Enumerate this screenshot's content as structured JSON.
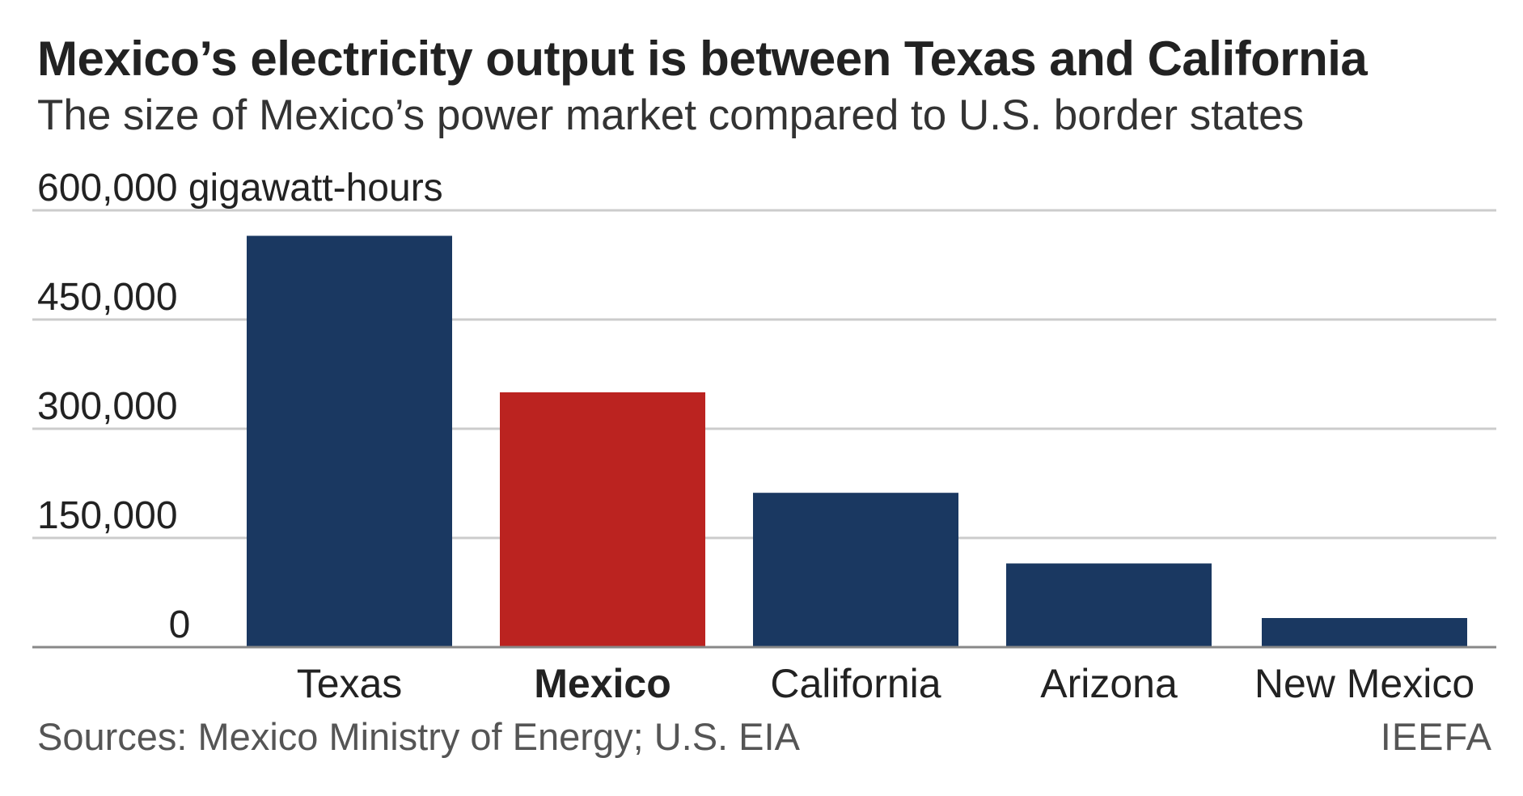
{
  "title": "Mexico’s electricity output is between Texas and California",
  "subtitle": "The size of Mexico’s power market compared to U.S. border states",
  "chart_data": {
    "type": "bar",
    "title": "Mexico’s electricity output is between Texas and California",
    "subtitle": "The size of Mexico’s power market compared to U.S. border states",
    "ylabel": "",
    "y_unit": "gigawatt-hours",
    "ylim": [
      0,
      600000
    ],
    "yticks": [
      0,
      150000,
      300000,
      450000,
      600000
    ],
    "ytick_labels": [
      "0",
      "150,000",
      "300,000",
      "450,000",
      "600,000 gigawatt-hours"
    ],
    "categories": [
      "Texas",
      "Mexico",
      "California",
      "Arizona",
      "New Mexico"
    ],
    "values": [
      565000,
      350000,
      212000,
      115000,
      40000
    ],
    "highlight": "Mexico",
    "grid": true,
    "legend": "none"
  },
  "colors": {
    "bar": "#1a3861",
    "highlight_bar": "#bb2320",
    "grid": "#cccccc",
    "axis": "#888888"
  },
  "footer": {
    "source": "Sources: Mexico Ministry of Energy; U.S. EIA",
    "credit": "IEEFA"
  }
}
